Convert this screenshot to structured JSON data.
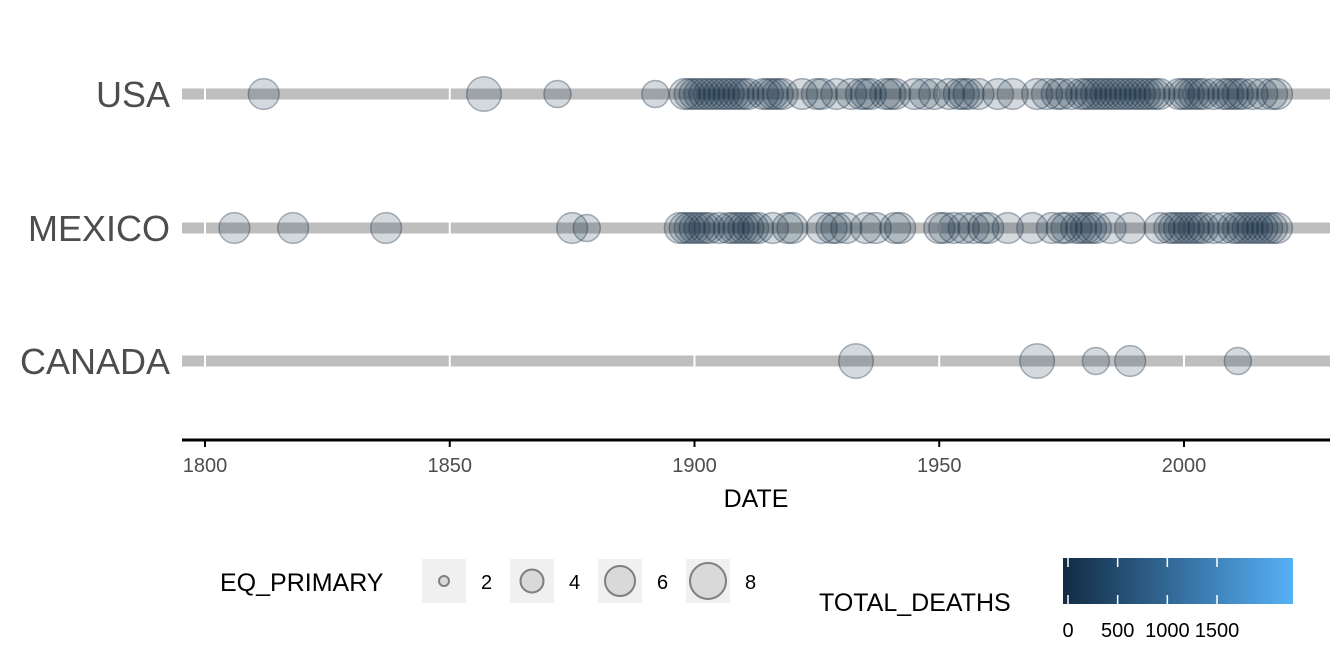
{
  "chart_data": {
    "type": "scatter",
    "title": "",
    "xlabel": "DATE",
    "ylabel": "",
    "xlim": [
      1795,
      2030
    ],
    "x_ticks": [
      1800,
      1850,
      1900,
      1950,
      2000
    ],
    "x_tick_labels": [
      "1800",
      "1850",
      "1900",
      "1950",
      "2000"
    ],
    "categories": [
      "USA",
      "MEXICO",
      "CANADA"
    ],
    "grid": false,
    "point_fill": "#132b43",
    "point_fill_light": "#56b1f7",
    "point_opacity": 0.18,
    "line_color": "#bebebe",
    "series": [
      {
        "category": "USA",
        "points": [
          {
            "x": 1812,
            "size": 6,
            "deaths": 0
          },
          {
            "x": 1857,
            "size": 7,
            "deaths": 0
          },
          {
            "x": 1872,
            "size": 5,
            "deaths": 0
          },
          {
            "x": 1892,
            "size": 5,
            "deaths": 0
          },
          {
            "x": 1898,
            "size": 6,
            "deaths": 0
          },
          {
            "x": 1899,
            "size": 6,
            "deaths": 0
          },
          {
            "x": 1900,
            "size": 6,
            "deaths": 0
          },
          {
            "x": 1901,
            "size": 6,
            "deaths": 0
          },
          {
            "x": 1902,
            "size": 6,
            "deaths": 0
          },
          {
            "x": 1903,
            "size": 6,
            "deaths": 0
          },
          {
            "x": 1904,
            "size": 6,
            "deaths": 0
          },
          {
            "x": 1905,
            "size": 6,
            "deaths": 0
          },
          {
            "x": 1906,
            "size": 6,
            "deaths": 0
          },
          {
            "x": 1907,
            "size": 6,
            "deaths": 0
          },
          {
            "x": 1908,
            "size": 6,
            "deaths": 0
          },
          {
            "x": 1909,
            "size": 6,
            "deaths": 0
          },
          {
            "x": 1910,
            "size": 6,
            "deaths": 0
          },
          {
            "x": 1911,
            "size": 6,
            "deaths": 0
          },
          {
            "x": 1914,
            "size": 6,
            "deaths": 0
          },
          {
            "x": 1915,
            "size": 6,
            "deaths": 0
          },
          {
            "x": 1916,
            "size": 6,
            "deaths": 0
          },
          {
            "x": 1917,
            "size": 6,
            "deaths": 0
          },
          {
            "x": 1918,
            "size": 6,
            "deaths": 0
          },
          {
            "x": 1922,
            "size": 6,
            "deaths": 0
          },
          {
            "x": 1925,
            "size": 6,
            "deaths": 0
          },
          {
            "x": 1926,
            "size": 6,
            "deaths": 0
          },
          {
            "x": 1929,
            "size": 6,
            "deaths": 0
          },
          {
            "x": 1932,
            "size": 6,
            "deaths": 0
          },
          {
            "x": 1934,
            "size": 6,
            "deaths": 0
          },
          {
            "x": 1935,
            "size": 6,
            "deaths": 0
          },
          {
            "x": 1936,
            "size": 6,
            "deaths": 0
          },
          {
            "x": 1939,
            "size": 6,
            "deaths": 0
          },
          {
            "x": 1940,
            "size": 6,
            "deaths": 0
          },
          {
            "x": 1941,
            "size": 6,
            "deaths": 0
          },
          {
            "x": 1945,
            "size": 6,
            "deaths": 0
          },
          {
            "x": 1947,
            "size": 6,
            "deaths": 0
          },
          {
            "x": 1949,
            "size": 6,
            "deaths": 0
          },
          {
            "x": 1952,
            "size": 6,
            "deaths": 0
          },
          {
            "x": 1954,
            "size": 6,
            "deaths": 0
          },
          {
            "x": 1955,
            "size": 6,
            "deaths": 0
          },
          {
            "x": 1956,
            "size": 6,
            "deaths": 0
          },
          {
            "x": 1958,
            "size": 6,
            "deaths": 0
          },
          {
            "x": 1962,
            "size": 6,
            "deaths": 0
          },
          {
            "x": 1965,
            "size": 6,
            "deaths": 0
          },
          {
            "x": 1970,
            "size": 6,
            "deaths": 0
          },
          {
            "x": 1972,
            "size": 6,
            "deaths": 0
          },
          {
            "x": 1974,
            "size": 6,
            "deaths": 0
          },
          {
            "x": 1975,
            "size": 6,
            "deaths": 0
          },
          {
            "x": 1977,
            "size": 6,
            "deaths": 0
          },
          {
            "x": 1979,
            "size": 6,
            "deaths": 0
          },
          {
            "x": 1980,
            "size": 6,
            "deaths": 0
          },
          {
            "x": 1981,
            "size": 6,
            "deaths": 0
          },
          {
            "x": 1982,
            "size": 6,
            "deaths": 0
          },
          {
            "x": 1983,
            "size": 6,
            "deaths": 0
          },
          {
            "x": 1984,
            "size": 6,
            "deaths": 0
          },
          {
            "x": 1985,
            "size": 6,
            "deaths": 0
          },
          {
            "x": 1986,
            "size": 6,
            "deaths": 0
          },
          {
            "x": 1987,
            "size": 6,
            "deaths": 0
          },
          {
            "x": 1988,
            "size": 6,
            "deaths": 0
          },
          {
            "x": 1989,
            "size": 6,
            "deaths": 0
          },
          {
            "x": 1990,
            "size": 6,
            "deaths": 0
          },
          {
            "x": 1991,
            "size": 6,
            "deaths": 0
          },
          {
            "x": 1992,
            "size": 6,
            "deaths": 0
          },
          {
            "x": 1993,
            "size": 6,
            "deaths": 0
          },
          {
            "x": 1994,
            "size": 6,
            "deaths": 0
          },
          {
            "x": 1995,
            "size": 6,
            "deaths": 0
          },
          {
            "x": 1999,
            "size": 6,
            "deaths": 0
          },
          {
            "x": 2000,
            "size": 6,
            "deaths": 0
          },
          {
            "x": 2001,
            "size": 6,
            "deaths": 0
          },
          {
            "x": 2002,
            "size": 6,
            "deaths": 0
          },
          {
            "x": 2003,
            "size": 6,
            "deaths": 0
          },
          {
            "x": 2004,
            "size": 6,
            "deaths": 0
          },
          {
            "x": 2006,
            "size": 6,
            "deaths": 0
          },
          {
            "x": 2008,
            "size": 6,
            "deaths": 0
          },
          {
            "x": 2009,
            "size": 6,
            "deaths": 0
          },
          {
            "x": 2010,
            "size": 6,
            "deaths": 0
          },
          {
            "x": 2011,
            "size": 6,
            "deaths": 0
          },
          {
            "x": 2012,
            "size": 6,
            "deaths": 0
          },
          {
            "x": 2014,
            "size": 6,
            "deaths": 0
          },
          {
            "x": 2016,
            "size": 6,
            "deaths": 0
          },
          {
            "x": 2018,
            "size": 6,
            "deaths": 0
          },
          {
            "x": 2019,
            "size": 6,
            "deaths": 0
          }
        ]
      },
      {
        "category": "MEXICO",
        "points": [
          {
            "x": 1806,
            "size": 6,
            "deaths": 0
          },
          {
            "x": 1818,
            "size": 6,
            "deaths": 0
          },
          {
            "x": 1837,
            "size": 6,
            "deaths": 0
          },
          {
            "x": 1875,
            "size": 6,
            "deaths": 0
          },
          {
            "x": 1878,
            "size": 5,
            "deaths": 0
          },
          {
            "x": 1897,
            "size": 6,
            "deaths": 0
          },
          {
            "x": 1898,
            "size": 6,
            "deaths": 0
          },
          {
            "x": 1899,
            "size": 6,
            "deaths": 0
          },
          {
            "x": 1900,
            "size": 6,
            "deaths": 0
          },
          {
            "x": 1901,
            "size": 6,
            "deaths": 0
          },
          {
            "x": 1902,
            "size": 6,
            "deaths": 0
          },
          {
            "x": 1903,
            "size": 6,
            "deaths": 0
          },
          {
            "x": 1905,
            "size": 6,
            "deaths": 0
          },
          {
            "x": 1907,
            "size": 6,
            "deaths": 0
          },
          {
            "x": 1908,
            "size": 6,
            "deaths": 0
          },
          {
            "x": 1909,
            "size": 6,
            "deaths": 0
          },
          {
            "x": 1910,
            "size": 6,
            "deaths": 0
          },
          {
            "x": 1911,
            "size": 6,
            "deaths": 0
          },
          {
            "x": 1912,
            "size": 6,
            "deaths": 0
          },
          {
            "x": 1913,
            "size": 6,
            "deaths": 0
          },
          {
            "x": 1916,
            "size": 6,
            "deaths": 0
          },
          {
            "x": 1919,
            "size": 6,
            "deaths": 0
          },
          {
            "x": 1920,
            "size": 6,
            "deaths": 0
          },
          {
            "x": 1926,
            "size": 6,
            "deaths": 0
          },
          {
            "x": 1928,
            "size": 6,
            "deaths": 0
          },
          {
            "x": 1929,
            "size": 6,
            "deaths": 0
          },
          {
            "x": 1931,
            "size": 6,
            "deaths": 0
          },
          {
            "x": 1935,
            "size": 6,
            "deaths": 0
          },
          {
            "x": 1937,
            "size": 6,
            "deaths": 0
          },
          {
            "x": 1941,
            "size": 6,
            "deaths": 0
          },
          {
            "x": 1942,
            "size": 6,
            "deaths": 0
          },
          {
            "x": 1950,
            "size": 6,
            "deaths": 0
          },
          {
            "x": 1951,
            "size": 6,
            "deaths": 0
          },
          {
            "x": 1953,
            "size": 6,
            "deaths": 0
          },
          {
            "x": 1955,
            "size": 6,
            "deaths": 0
          },
          {
            "x": 1957,
            "size": 6,
            "deaths": 0
          },
          {
            "x": 1959,
            "size": 6,
            "deaths": 0
          },
          {
            "x": 1960,
            "size": 6,
            "deaths": 0
          },
          {
            "x": 1964,
            "size": 6,
            "deaths": 0
          },
          {
            "x": 1969,
            "size": 6,
            "deaths": 0
          },
          {
            "x": 1973,
            "size": 6,
            "deaths": 0
          },
          {
            "x": 1975,
            "size": 6,
            "deaths": 0
          },
          {
            "x": 1976,
            "size": 6,
            "deaths": 0
          },
          {
            "x": 1978,
            "size": 6,
            "deaths": 0
          },
          {
            "x": 1979,
            "size": 6,
            "deaths": 0
          },
          {
            "x": 1980,
            "size": 6,
            "deaths": 0
          },
          {
            "x": 1981,
            "size": 6,
            "deaths": 0
          },
          {
            "x": 1982,
            "size": 6,
            "deaths": 0
          },
          {
            "x": 1985,
            "size": 6,
            "deaths": 200
          },
          {
            "x": 1989,
            "size": 6,
            "deaths": 0
          },
          {
            "x": 1995,
            "size": 6,
            "deaths": 0
          },
          {
            "x": 1997,
            "size": 6,
            "deaths": 0
          },
          {
            "x": 1998,
            "size": 6,
            "deaths": 0
          },
          {
            "x": 1999,
            "size": 6,
            "deaths": 0
          },
          {
            "x": 2000,
            "size": 6,
            "deaths": 0
          },
          {
            "x": 2001,
            "size": 6,
            "deaths": 0
          },
          {
            "x": 2002,
            "size": 6,
            "deaths": 0
          },
          {
            "x": 2003,
            "size": 6,
            "deaths": 0
          },
          {
            "x": 2004,
            "size": 6,
            "deaths": 0
          },
          {
            "x": 2006,
            "size": 6,
            "deaths": 0
          },
          {
            "x": 2008,
            "size": 6,
            "deaths": 0
          },
          {
            "x": 2010,
            "size": 6,
            "deaths": 0
          },
          {
            "x": 2011,
            "size": 6,
            "deaths": 0
          },
          {
            "x": 2012,
            "size": 6,
            "deaths": 0
          },
          {
            "x": 2013,
            "size": 6,
            "deaths": 0
          },
          {
            "x": 2014,
            "size": 6,
            "deaths": 0
          },
          {
            "x": 2015,
            "size": 6,
            "deaths": 0
          },
          {
            "x": 2016,
            "size": 6,
            "deaths": 0
          },
          {
            "x": 2017,
            "size": 6,
            "deaths": 0
          },
          {
            "x": 2018,
            "size": 6,
            "deaths": 0
          },
          {
            "x": 2019,
            "size": 6,
            "deaths": 0
          }
        ]
      },
      {
        "category": "CANADA",
        "points": [
          {
            "x": 1933,
            "size": 7,
            "deaths": 0
          },
          {
            "x": 1970,
            "size": 7,
            "deaths": 0
          },
          {
            "x": 1982,
            "size": 5,
            "deaths": 0
          },
          {
            "x": 1989,
            "size": 6,
            "deaths": 0
          },
          {
            "x": 2011,
            "size": 5,
            "deaths": 0
          }
        ]
      }
    ],
    "legend": {
      "position": "bottom",
      "size_title": "EQ_PRIMARY",
      "size_entries": [
        {
          "value": 2,
          "label": "2"
        },
        {
          "value": 4,
          "label": "4"
        },
        {
          "value": 6,
          "label": "6"
        },
        {
          "value": 8,
          "label": "8"
        }
      ],
      "color_title": "TOTAL_DEATHS",
      "color_ticks": [
        {
          "value": 0,
          "label": "0"
        },
        {
          "value": 500,
          "label": "500"
        },
        {
          "value": 1000,
          "label": "1000"
        },
        {
          "value": 1500,
          "label": "1500"
        }
      ],
      "color_range": [
        0,
        1900
      ],
      "color_low": "#132b43",
      "color_high": "#56b1f7"
    }
  }
}
